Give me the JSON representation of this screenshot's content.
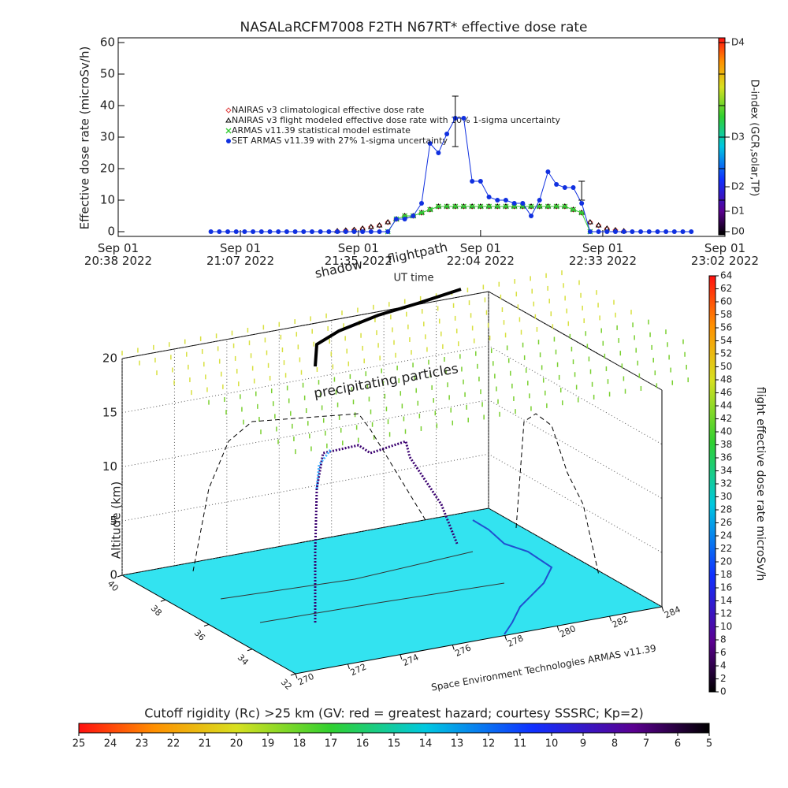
{
  "chart_data": [
    {
      "type": "line",
      "title": "NASALaRCFM7008  F2TH N67RT* effective dose rate",
      "y_label": "Effective dose rate (microSv/h)",
      "x_label": "UT time",
      "y2_label": "D-index (GCR,solar,TP)",
      "xlim": [
        "2022-09-01 20:38",
        "2022-09-01 23:02"
      ],
      "xticks": [
        {
          "value": "2022-09-01 20:38",
          "label": "Sep 01\n20:38 2022"
        },
        {
          "value": "2022-09-01 21:07",
          "label": "Sep 01\n21:07 2022"
        },
        {
          "value": "2022-09-01 21:35",
          "label": "Sep 01\n21:35 2022"
        },
        {
          "value": "2022-09-01 22:04",
          "label": "Sep 01\n22:04 2022"
        },
        {
          "value": "2022-09-01 22:33",
          "label": "Sep 01\n22:33 2022"
        },
        {
          "value": "2022-09-01 23:02",
          "label": "Sep 01\n23:02 2022"
        }
      ],
      "ylim": [
        -1.5,
        61.5
      ],
      "yticks": [
        0,
        10,
        20,
        30,
        40,
        50,
        60
      ],
      "y2lim": [
        -1.5,
        61.5
      ],
      "y2ticks": [
        {
          "value": 0,
          "label": "D0"
        },
        {
          "value": 6.5,
          "label": "D1"
        },
        {
          "value": 14.25,
          "label": "D2"
        },
        {
          "value": 30,
          "label": "D3"
        },
        {
          "value": 60,
          "label": "D4"
        }
      ],
      "x": [
        "2022-09-01 21:00",
        "2022-09-01 21:02",
        "2022-09-01 21:04",
        "2022-09-01 21:06",
        "2022-09-01 21:08",
        "2022-09-01 21:10",
        "2022-09-01 21:12",
        "2022-09-01 21:14",
        "2022-09-01 21:16",
        "2022-09-01 21:18",
        "2022-09-01 21:20",
        "2022-09-01 21:22",
        "2022-09-01 21:24",
        "2022-09-01 21:26",
        "2022-09-01 21:28",
        "2022-09-01 21:30",
        "2022-09-01 21:32",
        "2022-09-01 21:34",
        "2022-09-01 21:36",
        "2022-09-01 21:38",
        "2022-09-01 21:40",
        "2022-09-01 21:42",
        "2022-09-01 21:44",
        "2022-09-01 21:46",
        "2022-09-01 21:48",
        "2022-09-01 21:50",
        "2022-09-01 21:52",
        "2022-09-01 21:54",
        "2022-09-01 21:56",
        "2022-09-01 21:58",
        "2022-09-01 22:00",
        "2022-09-01 22:02",
        "2022-09-01 22:04",
        "2022-09-01 22:06",
        "2022-09-01 22:08",
        "2022-09-01 22:10",
        "2022-09-01 22:12",
        "2022-09-01 22:14",
        "2022-09-01 22:16",
        "2022-09-01 22:18",
        "2022-09-01 22:20",
        "2022-09-01 22:22",
        "2022-09-01 22:24",
        "2022-09-01 22:26",
        "2022-09-01 22:28",
        "2022-09-01 22:30",
        "2022-09-01 22:32",
        "2022-09-01 22:34",
        "2022-09-01 22:36",
        "2022-09-01 22:38",
        "2022-09-01 22:40",
        "2022-09-01 22:42",
        "2022-09-01 22:44",
        "2022-09-01 22:46",
        "2022-09-01 22:48",
        "2022-09-01 22:50",
        "2022-09-01 22:52",
        "2022-09-01 22:54"
      ],
      "series": [
        {
          "name": "NAIRAS v3 climatological effective dose rate",
          "color": "#e04040",
          "marker": "diamond",
          "values": [
            null,
            null,
            null,
            null,
            null,
            null,
            null,
            null,
            null,
            null,
            null,
            null,
            null,
            null,
            null,
            0.2,
            0.4,
            0.6,
            1,
            1.5,
            2,
            3,
            4,
            5,
            5,
            6,
            7,
            8,
            8,
            8,
            8,
            8,
            8,
            8,
            8,
            8,
            8,
            8,
            8,
            8,
            8,
            8,
            8,
            7,
            6,
            3,
            2,
            1,
            0.5,
            0.2,
            null,
            null,
            null,
            null,
            null,
            null,
            null,
            null
          ]
        },
        {
          "name": "NAIRAS v3 flight modeled effective dose rate with 10% 1-sigma uncertainty",
          "color": "#000000",
          "marker": "triangle",
          "values": [
            null,
            null,
            null,
            null,
            null,
            null,
            null,
            null,
            null,
            null,
            null,
            null,
            null,
            null,
            null,
            0.2,
            0.4,
            0.6,
            1,
            1.5,
            2,
            3,
            4,
            5,
            5,
            6,
            7,
            8,
            8,
            8,
            8,
            8,
            8,
            8,
            8,
            8,
            8,
            8,
            8,
            8,
            8,
            8,
            8,
            7,
            6,
            3,
            2,
            1,
            0.5,
            0.2,
            null,
            null,
            null,
            null,
            null,
            null,
            null,
            null
          ]
        },
        {
          "name": "ARMAS v11.39 statistical model estimate",
          "color": "#33cc33",
          "marker": "asterisk",
          "values": [
            null,
            null,
            null,
            null,
            null,
            null,
            null,
            null,
            null,
            null,
            null,
            null,
            null,
            null,
            null,
            null,
            null,
            null,
            null,
            null,
            null,
            0,
            4,
            5,
            5,
            6,
            7,
            8,
            8,
            8,
            8,
            8,
            8,
            8,
            8,
            8,
            8,
            8,
            8,
            8,
            8,
            8,
            8,
            7,
            6,
            0,
            null,
            null,
            null,
            null,
            null,
            null,
            null,
            null,
            null,
            null,
            null,
            null
          ]
        },
        {
          "name": "SET ARMAS v11.39 with 27% 1-sigma uncertainty",
          "color": "#1030e0",
          "marker": "circle",
          "values": [
            0,
            0,
            0,
            0,
            0,
            0,
            0,
            0,
            0,
            0,
            0,
            0,
            0,
            0,
            0,
            0,
            0,
            0,
            0,
            0,
            0,
            0,
            4,
            4,
            5,
            9,
            28,
            25,
            31,
            36,
            36,
            16,
            16,
            11,
            10,
            10,
            9,
            9,
            5,
            10,
            19,
            15,
            14,
            14,
            9,
            0,
            0,
            0,
            0,
            0,
            0,
            0,
            0,
            0,
            0,
            0,
            0,
            0
          ]
        }
      ],
      "error_bars": [
        {
          "x": "2022-09-01 21:58",
          "value": 35,
          "error": 8
        },
        {
          "x": "2022-09-01 22:28",
          "value": 13,
          "error": 3
        }
      ]
    },
    {
      "type": "surface3d",
      "z_label": "Altitude (km)",
      "zlim": [
        0,
        20
      ],
      "zticks": [
        0,
        5,
        10,
        15,
        20
      ],
      "xlim": [
        270,
        284
      ],
      "xticks": [
        270,
        272,
        274,
        276,
        278,
        280,
        282,
        284
      ],
      "ylim": [
        32,
        40
      ],
      "yticks": [
        32,
        34,
        36,
        38,
        40
      ],
      "annotations": [
        "flightpath",
        "shadow",
        "precipitating particles",
        "Space Environment Technologies ARMAS v11.39"
      ],
      "colorbar": {
        "title": "flight effective dose rate microSv/h",
        "lim": [
          0,
          64
        ],
        "ticks": [
          0,
          2,
          4,
          6,
          8,
          10,
          12,
          14,
          16,
          18,
          20,
          22,
          24,
          26,
          28,
          30,
          32,
          34,
          36,
          38,
          40,
          42,
          44,
          46,
          48,
          50,
          52,
          54,
          56,
          58,
          60,
          62,
          64
        ]
      },
      "colorbar2": {
        "title": "Cutoff rigidity (Rc) >25 km (GV: red = greatest hazard; courtesy SSSRC; Kp=2)",
        "lim": [
          25,
          5
        ],
        "ticks": [
          25,
          24,
          23,
          22,
          21,
          20,
          19,
          18,
          17,
          16,
          15,
          14,
          13,
          12,
          11,
          10,
          9,
          8,
          7,
          6,
          5
        ]
      }
    }
  ]
}
